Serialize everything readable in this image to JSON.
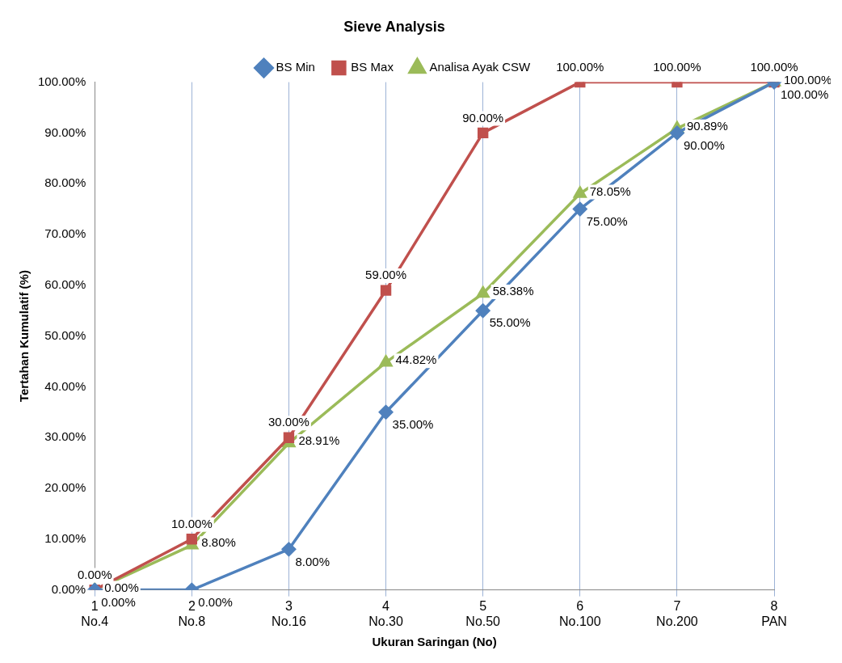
{
  "chart_data": {
    "type": "line",
    "title": "Sieve Analysis",
    "xlabel": "Ukuran Saringan (No)",
    "ylabel": "Tertahan Kumulatif (%)",
    "categories": [
      "1\nNo.4",
      "2\nNo.8",
      "3\nNo.16",
      "4\nNo.30",
      "5\nNo.50",
      "6\nNo.100",
      "7\nNo.200",
      "8\nPAN"
    ],
    "series": [
      {
        "name": "BS Min",
        "color": "#4f81bd",
        "marker": "diamond",
        "values": [
          0,
          0,
          8,
          35,
          55,
          75,
          90,
          100
        ],
        "value_labels": [
          "0.00%",
          "0.00%",
          "8.00%",
          "35.00%",
          "55.00%",
          "75.00%",
          "90.00%",
          "100.00%"
        ]
      },
      {
        "name": "BS Max",
        "color": "#c0504d",
        "marker": "square",
        "values": [
          0,
          10,
          30,
          59,
          90,
          100,
          100,
          100
        ],
        "value_labels": [
          "0.00%",
          "10.00%",
          "30.00%",
          "59.00%",
          "90.00%",
          "100.00%",
          "100.00%",
          "100.00%"
        ]
      },
      {
        "name": "Analisa Ayak CSW",
        "color": "#9bbb59",
        "marker": "triangle",
        "values": [
          0,
          8.8,
          28.91,
          44.82,
          58.38,
          78.05,
          90.89,
          100
        ],
        "value_labels": [
          "0.00%",
          "8.80%",
          "28.91%",
          "44.82%",
          "58.38%",
          "78.05%",
          "90.89%",
          "100.00%"
        ]
      }
    ],
    "ylim": [
      0,
      100
    ],
    "yticks": [
      {
        "value": 0,
        "label": "0.00%"
      },
      {
        "value": 10,
        "label": "10.00%"
      },
      {
        "value": 20,
        "label": "20.00%"
      },
      {
        "value": 30,
        "label": "30.00%"
      },
      {
        "value": 40,
        "label": "40.00%"
      },
      {
        "value": 50,
        "label": "50.00%"
      },
      {
        "value": 60,
        "label": "60.00%"
      },
      {
        "value": 70,
        "label": "70.00%"
      },
      {
        "value": 80,
        "label": "80.00%"
      },
      {
        "value": 90,
        "label": "90.00%"
      },
      {
        "value": 100,
        "label": "100.00%"
      }
    ],
    "grid": "x",
    "legend": "top",
    "line_style": "solid"
  }
}
